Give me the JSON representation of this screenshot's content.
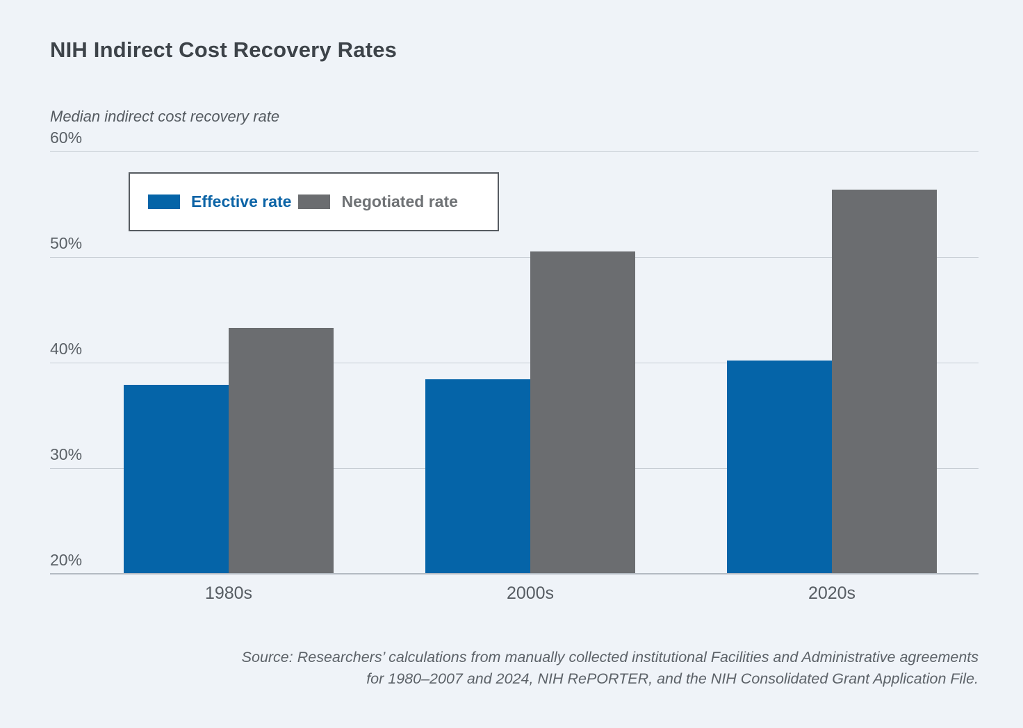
{
  "title": "NIH Indirect Cost Recovery Rates",
  "subtitle": "Median indirect cost recovery rate",
  "chart_data": {
    "type": "bar",
    "title": "NIH Indirect Cost Recovery Rates",
    "ylabel": "Median indirect cost recovery rate",
    "categories": [
      "1980s",
      "2000s",
      "2020s"
    ],
    "series": [
      {
        "name": "Effective rate",
        "color": "#0564a8",
        "values": [
          37.9,
          38.4,
          40.2
        ]
      },
      {
        "name": "Negotiated rate",
        "color": "#6b6d70",
        "values": [
          43.3,
          50.5,
          56.4
        ]
      }
    ],
    "ylim": [
      20,
      60
    ],
    "yticks": [
      20,
      30,
      40,
      50,
      60
    ],
    "ytick_labels": [
      "20%",
      "30%",
      "40%",
      "50%",
      "60%"
    ],
    "grid": true,
    "legend_position": "upper-left-inside"
  },
  "colors": {
    "background": "#eff3f8",
    "effective_bar": "#0564a8",
    "negotiated_bar": "#6b6d70",
    "gridline": "#c7cdd4",
    "legend_effective_text": "#0c64a6",
    "legend_negotiated_text": "#6f7275"
  },
  "source_note": {
    "line1": "Source: Researchers’ calculations from manually collected institutional Facilities and Administrative agreements",
    "line2": "for 1980–2007 and 2024, NIH RePORTER, and the NIH Consolidated Grant Application File."
  }
}
